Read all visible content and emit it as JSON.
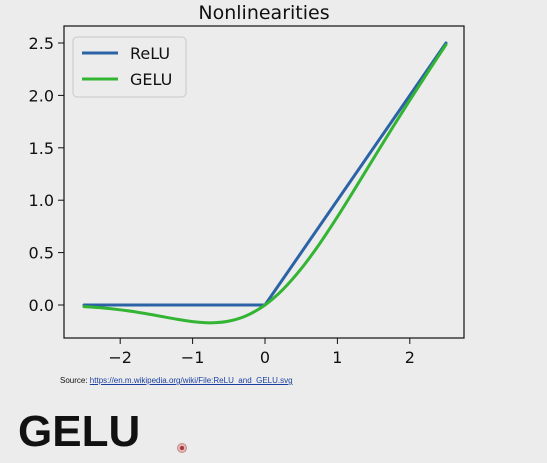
{
  "chart_data": {
    "type": "line",
    "title": "Nonlinearities",
    "xlabel": "",
    "ylabel": "",
    "xlim": [
      -2.5,
      2.5
    ],
    "ylim": [
      -0.2,
      2.5
    ],
    "xticks": [
      -2,
      -1,
      0,
      1,
      2
    ],
    "xtick_labels": [
      "−2",
      "−1",
      "0",
      "1",
      "2"
    ],
    "yticks": [
      0.0,
      0.5,
      1.0,
      1.5,
      2.0,
      2.5
    ],
    "ytick_labels": [
      "0.0",
      "0.5",
      "1.0",
      "1.5",
      "2.0",
      "2.5"
    ],
    "grid": false,
    "legend_position": "top-left",
    "series": [
      {
        "name": "ReLU",
        "color": "#2b63a6",
        "x": [
          -2.5,
          0,
          2.5
        ],
        "y": [
          0,
          0,
          2.5
        ]
      },
      {
        "name": "GELU",
        "color": "#33b533",
        "x": [
          -2.5,
          -2.25,
          -2.0,
          -1.75,
          -1.5,
          -1.25,
          -1.0,
          -0.75,
          -0.5,
          -0.25,
          0.0,
          0.25,
          0.5,
          0.75,
          1.0,
          1.25,
          1.5,
          1.75,
          2.0,
          2.25,
          2.5
        ],
        "y": [
          -0.016,
          -0.028,
          -0.046,
          -0.07,
          -0.1,
          -0.132,
          -0.159,
          -0.17,
          -0.154,
          -0.1,
          0.0,
          0.15,
          0.346,
          0.58,
          0.841,
          1.118,
          1.4,
          1.68,
          1.954,
          2.222,
          2.484
        ]
      }
    ]
  },
  "source": {
    "prefix": "Source: ",
    "link_text": "https://en.m.wikipedia.org/wiki/File:ReLU_and_GELU.svg"
  },
  "slide": {
    "heading": "GELU"
  }
}
